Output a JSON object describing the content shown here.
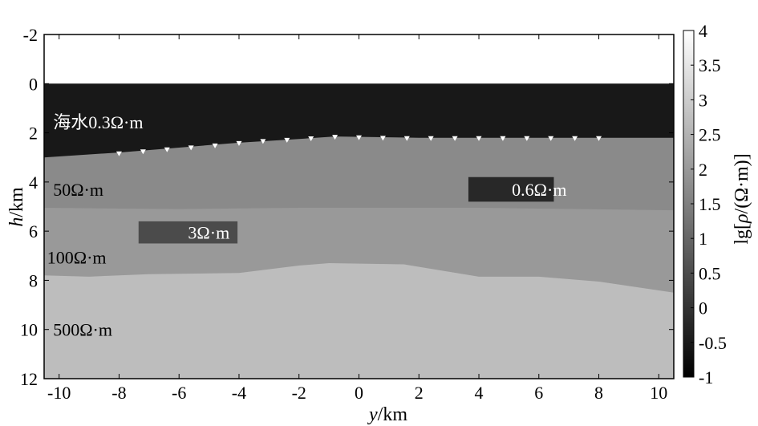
{
  "chart_data": {
    "type": "heatmap",
    "xlabel_var": "y",
    "xlabel_unit": "/km",
    "ylabel_var": "h",
    "ylabel_unit": "/km",
    "xlim": [
      -10.5,
      10.5
    ],
    "ylim": [
      -2,
      12
    ],
    "y_reversed": true,
    "xticks": [
      "-10",
      "-8",
      "-6",
      "-4",
      "-2",
      "0",
      "2",
      "4",
      "6",
      "8",
      "10"
    ],
    "yticks": [
      "-2",
      "0",
      "2",
      "4",
      "6",
      "8",
      "10",
      "12"
    ],
    "colorbar": {
      "label_prefix": "lg[",
      "label_var": "ρ",
      "label_suffix": "/(Ω·m)]",
      "range": [
        -1,
        4
      ],
      "ticks": [
        "-1",
        "-0.5",
        "0",
        "0.5",
        "1",
        "1.5",
        "2",
        "2.5",
        "3",
        "3.5",
        "4"
      ]
    },
    "seafloor": {
      "x": [
        -10.5,
        -8,
        -6,
        -4,
        -2,
        -0.8,
        2,
        4,
        6,
        8,
        10.5
      ],
      "depth": [
        3.0,
        2.8,
        2.6,
        2.4,
        2.25,
        2.15,
        2.2,
        2.2,
        2.2,
        2.2,
        2.2
      ]
    },
    "stations": {
      "x": [
        -8,
        -7.2,
        -6.4,
        -5.6,
        -4.8,
        -4,
        -3.2,
        -2.4,
        -1.6,
        -0.8,
        0,
        0.8,
        1.6,
        2.4,
        3.2,
        4,
        4.8,
        5.6,
        6.4,
        7.2,
        8
      ],
      "depth": [
        2.82,
        2.74,
        2.66,
        2.58,
        2.5,
        2.4,
        2.32,
        2.27,
        2.21,
        2.15,
        2.17,
        2.19,
        2.2,
        2.2,
        2.2,
        2.2,
        2.2,
        2.2,
        2.2,
        2.2,
        2.2
      ]
    },
    "layer_boundary_100": {
      "x": [
        -10.5,
        -6,
        -2,
        0,
        4,
        10.5
      ],
      "depth": [
        5.05,
        5.1,
        5.05,
        5.05,
        5.05,
        5.15
      ]
    },
    "layer_boundary_500": {
      "x": [
        -10.5,
        -9,
        -7,
        -4,
        -2,
        -1,
        1.5,
        4,
        6,
        8,
        10.5
      ],
      "depth": [
        7.8,
        7.85,
        7.75,
        7.7,
        7.4,
        7.3,
        7.35,
        7.85,
        7.85,
        8.05,
        8.5
      ]
    },
    "layers": [
      {
        "name": "海水0.3Ω·m",
        "log_rho": -0.52
      },
      {
        "name": "50Ω·m",
        "log_rho": 1.7
      },
      {
        "name": "100Ω·m",
        "log_rho": 2.0
      },
      {
        "name": "500Ω·m",
        "log_rho": 2.7
      }
    ],
    "anomalies": [
      {
        "name": "3Ω·m",
        "log_rho": 0.48,
        "x": [
          -7.35,
          -4.05
        ],
        "depth": [
          5.6,
          6.5
        ]
      },
      {
        "name": "0.6Ω·m",
        "log_rho": -0.22,
        "x": [
          3.65,
          6.5
        ],
        "depth": [
          3.8,
          4.8
        ]
      }
    ],
    "labels": [
      {
        "text": "海水0.3Ω·m",
        "x": -10.2,
        "depth": 1.55,
        "color": "#ffffff"
      },
      {
        "text": "50Ω·m",
        "x": -10.2,
        "depth": 4.3,
        "color": "#000000"
      },
      {
        "text": "100Ω·m",
        "x": -10.4,
        "depth": 7.05,
        "color": "#000000"
      },
      {
        "text": "500Ω·m",
        "x": -10.2,
        "depth": 10.0,
        "color": "#000000"
      },
      {
        "text": "3Ω·m",
        "x": -5.7,
        "depth": 6.05,
        "color": "#ffffff"
      },
      {
        "text": "0.6Ω·m",
        "x": 5.1,
        "depth": 4.3,
        "color": "#ffffff"
      }
    ]
  }
}
